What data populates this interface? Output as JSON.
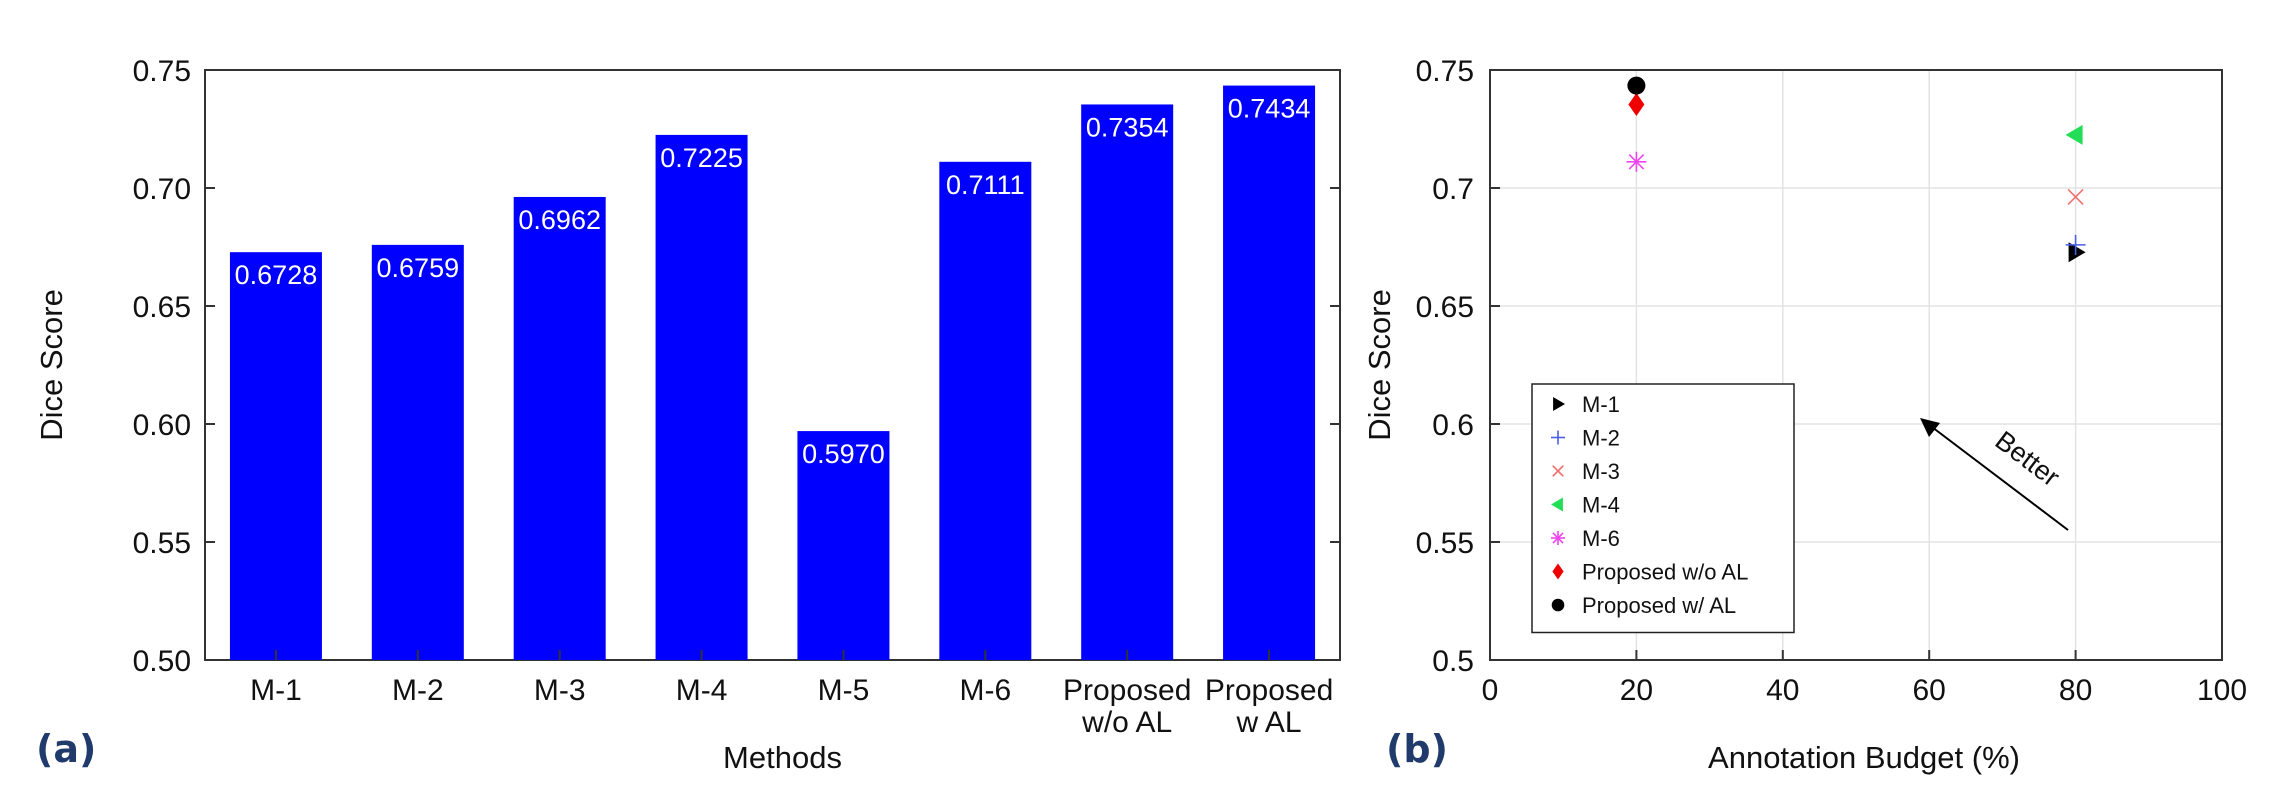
{
  "chart_data": [
    {
      "panel": "(a)",
      "type": "bar",
      "xlabel": "Methods",
      "ylabel": "Dice Score",
      "ylim": [
        0.5,
        0.75
      ],
      "yticks": [
        "0.50",
        "0.55",
        "0.60",
        "0.65",
        "0.70",
        "0.75"
      ],
      "categories": [
        [
          "M-1"
        ],
        [
          "M-2"
        ],
        [
          "M-3"
        ],
        [
          "M-4"
        ],
        [
          "M-5"
        ],
        [
          "M-6"
        ],
        [
          "Proposed",
          "w/o AL"
        ],
        [
          "Proposed",
          "w AL"
        ]
      ],
      "values": [
        0.6728,
        0.6759,
        0.6962,
        0.7225,
        0.597,
        0.7111,
        0.7354,
        0.7434
      ],
      "value_labels": [
        "0.6728",
        "0.6759",
        "0.6962",
        "0.7225",
        "0.5970",
        "0.7111",
        "0.7354",
        "0.7434"
      ],
      "bar_color": "#0000ff",
      "grid": false
    },
    {
      "panel": "(b)",
      "type": "scatter",
      "xlabel": "Annotation Budget (%)",
      "ylabel": "Dice Score",
      "xlim": [
        0,
        100
      ],
      "ylim": [
        0.5,
        0.75
      ],
      "xticks": [
        "0",
        "20",
        "40",
        "60",
        "80",
        "100"
      ],
      "yticks": [
        "0.5",
        "0.55",
        "0.6",
        "0.65",
        "0.7",
        "0.75"
      ],
      "grid": true,
      "legend_position": "lower-left",
      "series": [
        {
          "name": "M-1",
          "marker": "triangle-right",
          "color": "#000000",
          "points": [
            [
              80,
              0.6728
            ]
          ]
        },
        {
          "name": "M-2",
          "marker": "plus",
          "color": "#4a5ee8",
          "points": [
            [
              80,
              0.6759
            ]
          ]
        },
        {
          "name": "M-3",
          "marker": "x",
          "color": "#f07070",
          "points": [
            [
              80,
              0.6962
            ]
          ]
        },
        {
          "name": "M-4",
          "marker": "triangle-left",
          "color": "#22dd55",
          "points": [
            [
              80,
              0.7225
            ]
          ]
        },
        {
          "name": "M-6",
          "marker": "asterisk",
          "color": "#ee44ee",
          "points": [
            [
              20,
              0.7111
            ]
          ]
        },
        {
          "name": "Proposed w/o AL",
          "marker": "diamond",
          "color": "#ee0000",
          "points": [
            [
              20,
              0.7354
            ]
          ]
        },
        {
          "name": "Proposed w/ AL",
          "marker": "circle",
          "color": "#000000",
          "points": [
            [
              20,
              0.7434
            ]
          ]
        }
      ],
      "annotation": {
        "text": "Better",
        "direction": "toward upper-left"
      }
    }
  ]
}
